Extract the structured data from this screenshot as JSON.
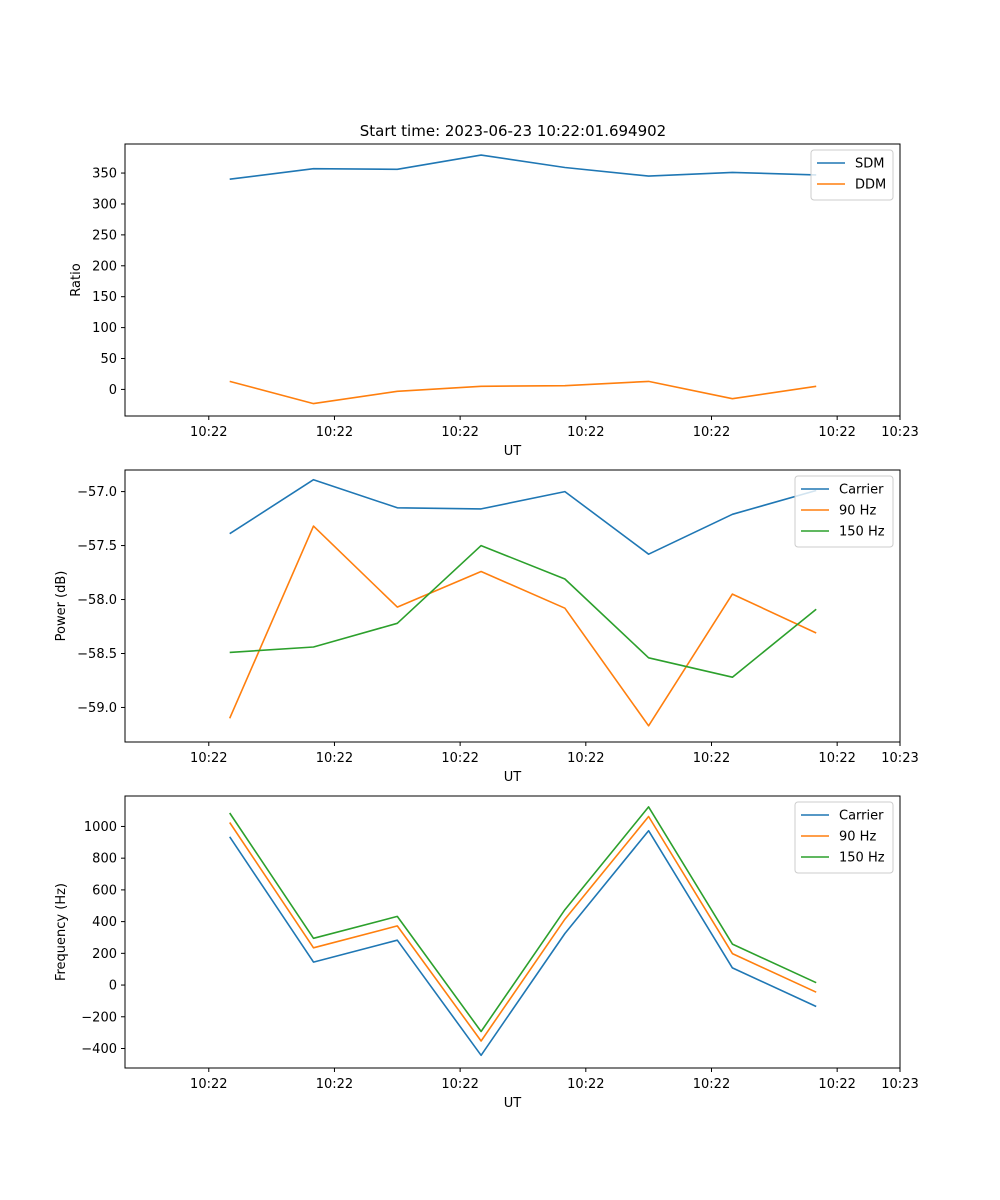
{
  "figure": {
    "title": "Start time: 2023-06-23 10:22:01.694902"
  },
  "chart_data": [
    {
      "type": "line",
      "title": "Start time: 2023-06-23 10:22:01.694902",
      "xlabel": "UT",
      "ylabel": "Ratio",
      "x_tick_labels": [
        "10:22",
        "10:22",
        "10:22",
        "10:22",
        "10:22",
        "10:22",
        "10:23"
      ],
      "xlim": [
        -1.0,
        8.25
      ],
      "ylim": [
        -43,
        397
      ],
      "y_ticks": [
        0,
        50,
        100,
        150,
        200,
        250,
        300,
        350
      ],
      "legend_position": "upper right",
      "grid": false,
      "series": [
        {
          "name": "SDM",
          "color": "#1f77b4",
          "values": [
            340,
            357,
            356,
            379,
            359,
            345,
            351,
            347
          ]
        },
        {
          "name": "DDM",
          "color": "#ff7f0e",
          "values": [
            13,
            -23,
            -3,
            5,
            6,
            13,
            -15,
            5
          ]
        }
      ]
    },
    {
      "type": "line",
      "title": "",
      "xlabel": "UT",
      "ylabel": "Power (dB)",
      "x_tick_labels": [
        "10:22",
        "10:22",
        "10:22",
        "10:22",
        "10:22",
        "10:22",
        "10:23"
      ],
      "xlim": [
        -1.0,
        8.25
      ],
      "ylim": [
        -59.32,
        -56.8
      ],
      "y_ticks": [
        -59.0,
        -58.5,
        -58.0,
        -57.5,
        -57.0
      ],
      "y_tick_labels": [
        "−59.0",
        "−58.5",
        "−58.0",
        "−57.5",
        "−57.0"
      ],
      "legend_position": "upper right",
      "grid": false,
      "series": [
        {
          "name": "Carrier",
          "color": "#1f77b4",
          "values": [
            -57.39,
            -56.89,
            -57.15,
            -57.16,
            -57.0,
            -57.58,
            -57.21,
            -56.99
          ]
        },
        {
          "name": "90 Hz",
          "color": "#ff7f0e",
          "values": [
            -59.1,
            -57.32,
            -58.07,
            -57.74,
            -58.08,
            -59.17,
            -57.95,
            -58.31
          ]
        },
        {
          "name": "150 Hz",
          "color": "#2ca02c",
          "values": [
            -58.49,
            -58.44,
            -58.22,
            -57.5,
            -57.81,
            -58.54,
            -58.72,
            -58.09
          ]
        }
      ]
    },
    {
      "type": "line",
      "title": "",
      "xlabel": "UT",
      "ylabel": "Frequency (Hz)",
      "x_tick_labels": [
        "10:22",
        "10:22",
        "10:22",
        "10:22",
        "10:22",
        "10:22",
        "10:23"
      ],
      "xlim": [
        -1.0,
        8.25
      ],
      "ylim": [
        -523,
        1192
      ],
      "y_ticks": [
        -400,
        -200,
        0,
        200,
        400,
        600,
        800,
        1000
      ],
      "y_tick_labels": [
        "−400",
        "−200",
        "0",
        "200",
        "400",
        "600",
        "800",
        "1000"
      ],
      "legend_position": "upper right",
      "grid": false,
      "series": [
        {
          "name": "Carrier",
          "color": "#1f77b4",
          "values": [
            935,
            145,
            283,
            -443,
            325,
            973,
            108,
            -135
          ]
        },
        {
          "name": "90 Hz",
          "color": "#ff7f0e",
          "values": [
            1025,
            235,
            373,
            -353,
            415,
            1063,
            198,
            -45
          ]
        },
        {
          "name": "150 Hz",
          "color": "#2ca02c",
          "values": [
            1085,
            295,
            433,
            -293,
            475,
            1123,
            258,
            15
          ]
        }
      ]
    }
  ]
}
